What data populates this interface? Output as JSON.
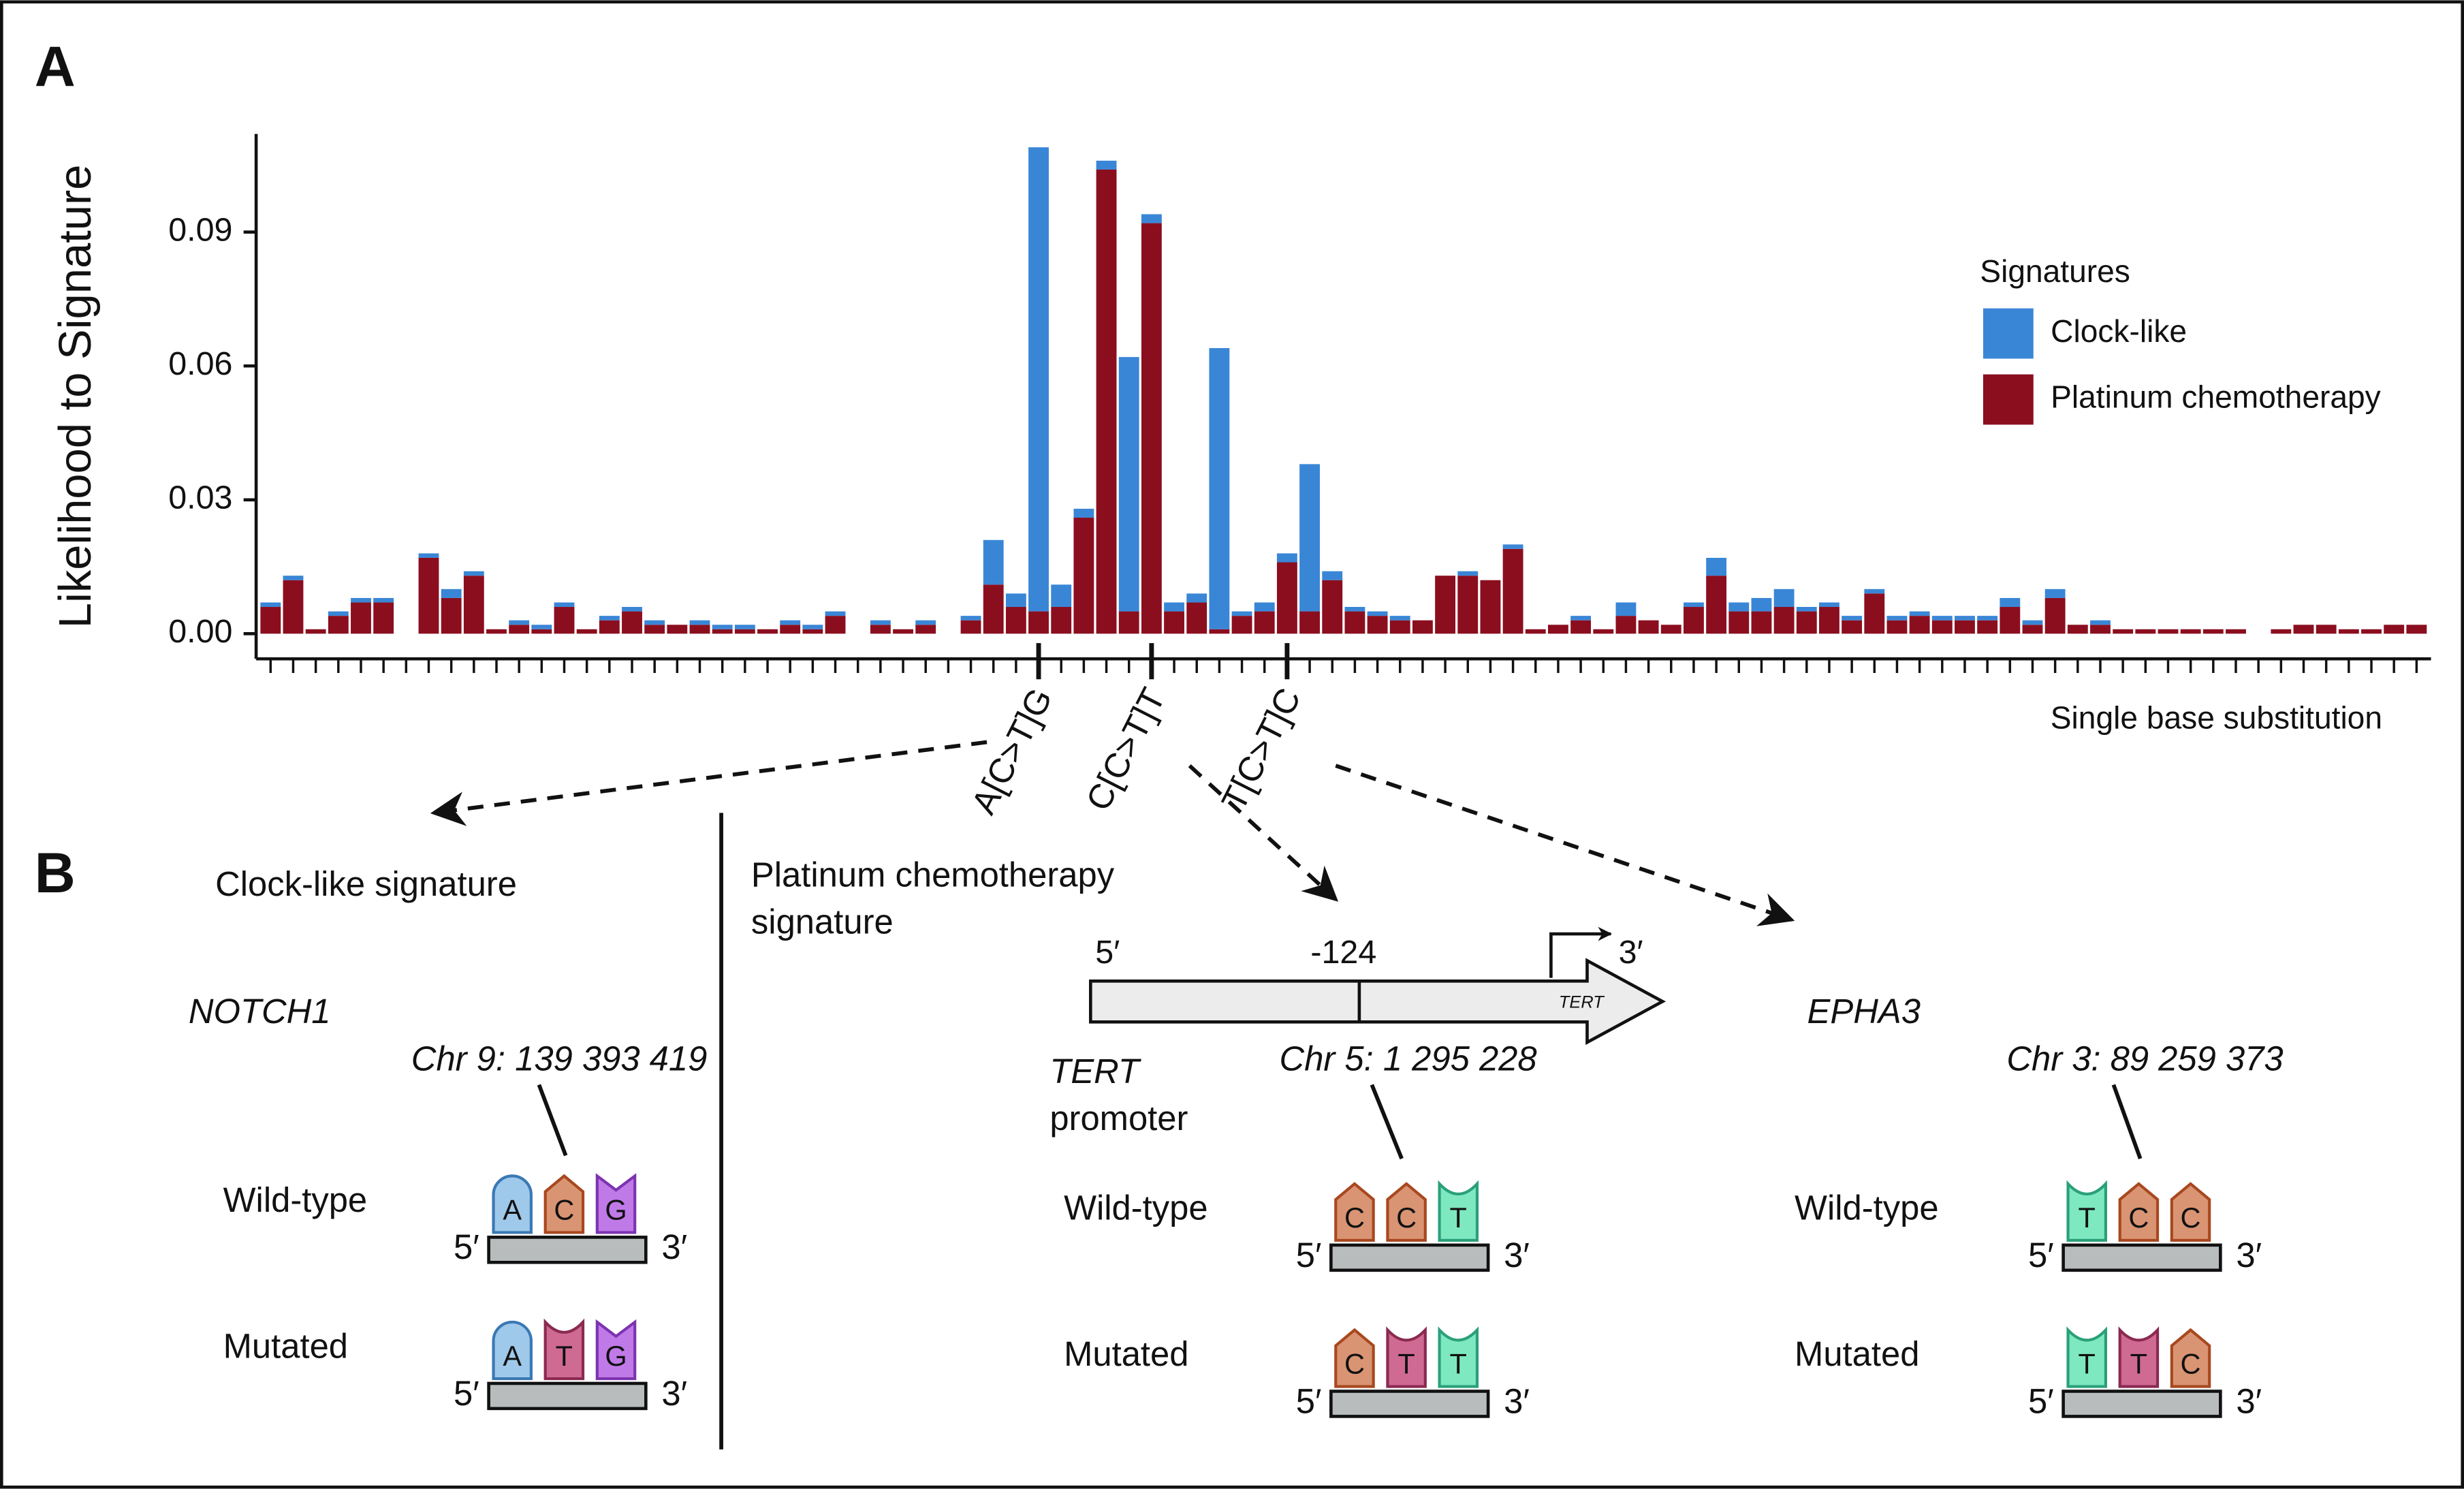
{
  "chart_data": {
    "type": "bar",
    "panel": "A",
    "ylabel": "Likelihood to Signature",
    "xlabel": "Single base substitution",
    "legend_title": "Signatures",
    "legend": "right",
    "stacked": true,
    "ylim": [
      0,
      0.112
    ],
    "yticks": [
      {
        "value": 0,
        "label": "0.00"
      },
      0.03,
      0.06,
      0.09
    ],
    "categories": [
      null,
      null,
      null,
      null,
      null,
      null,
      null,
      null,
      null,
      null,
      null,
      null,
      null,
      null,
      null,
      null,
      null,
      null,
      null,
      null,
      null,
      null,
      null,
      null,
      null,
      null,
      null,
      null,
      null,
      null,
      null,
      null,
      null,
      null,
      "A[C>T]G",
      null,
      null,
      null,
      null,
      "C[C>T]T",
      null,
      null,
      null,
      null,
      null,
      "T[C>T]C",
      null,
      null,
      null,
      null,
      null,
      null,
      null,
      null,
      null,
      null,
      null,
      null,
      null,
      null,
      null,
      null,
      null,
      null,
      null,
      null,
      null,
      null,
      null,
      null,
      null,
      null,
      null,
      null,
      null,
      null,
      null,
      null,
      null,
      null,
      null,
      null,
      null,
      null,
      null,
      null,
      null,
      null,
      null,
      null,
      null,
      null,
      null,
      null,
      null,
      null
    ],
    "series": [
      {
        "name": "Clock-like",
        "color": "#3a86d6",
        "values": [
          0.001,
          0.001,
          0,
          0.001,
          0.001,
          0.001,
          0,
          0.001,
          0.002,
          0.001,
          0,
          0.001,
          0.001,
          0.001,
          0,
          0.001,
          0.001,
          0.001,
          0,
          0.001,
          0.001,
          0.001,
          0,
          0.001,
          0.001,
          0.001,
          0,
          0.001,
          0,
          0.001,
          0,
          0.001,
          0.01,
          0.003,
          0.104,
          0.005,
          0.002,
          0.002,
          0.057,
          0.002,
          0.002,
          0.002,
          0.063,
          0.001,
          0.002,
          0.002,
          0.033,
          0.002,
          0.001,
          0.001,
          0.001,
          0,
          0,
          0.001,
          0,
          0.001,
          0,
          0,
          0.001,
          0,
          0.003,
          0,
          0,
          0.001,
          0.004,
          0.002,
          0.003,
          0.004,
          0.001,
          0.001,
          0.001,
          0.001,
          0.001,
          0.001,
          0.001,
          0.001,
          0.001,
          0.002,
          0.001,
          0.002,
          0,
          0.001,
          0,
          0,
          0,
          0,
          0,
          0,
          0,
          0,
          0,
          0,
          0,
          0,
          0,
          0
        ]
      },
      {
        "name": "Platinum chemotherapy",
        "color": "#8b0e1f",
        "values": [
          0.006,
          0.012,
          0.001,
          0.004,
          0.007,
          0.007,
          0,
          0.017,
          0.008,
          0.013,
          0.001,
          0.002,
          0.001,
          0.006,
          0.001,
          0.003,
          0.005,
          0.002,
          0.002,
          0.002,
          0.001,
          0.001,
          0.001,
          0.002,
          0.001,
          0.004,
          0,
          0.002,
          0.001,
          0.002,
          0,
          0.003,
          0.011,
          0.006,
          0.005,
          0.006,
          0.026,
          0.104,
          0.005,
          0.092,
          0.005,
          0.007,
          0.001,
          0.004,
          0.005,
          0.016,
          0.005,
          0.012,
          0.005,
          0.004,
          0.003,
          0.003,
          0.013,
          0.013,
          0.012,
          0.019,
          0.001,
          0.002,
          0.003,
          0.001,
          0.004,
          0.003,
          0.002,
          0.006,
          0.013,
          0.005,
          0.005,
          0.006,
          0.005,
          0.006,
          0.003,
          0.009,
          0.003,
          0.004,
          0.003,
          0.003,
          0.003,
          0.006,
          0.002,
          0.008,
          0.002,
          0.002,
          0.001,
          0.001,
          0.001,
          0.001,
          0.001,
          0.001,
          0,
          0.001,
          0.002,
          0.002,
          0.001,
          0.001,
          0.002,
          0.002
        ]
      }
    ]
  },
  "panel_b": {
    "label": "B",
    "strand": {
      "five": "5′",
      "three": "3′"
    },
    "tert_diagram": {
      "five": "5′",
      "position": "-124",
      "three": "3′",
      "gene": "TERT"
    },
    "columns": [
      {
        "title": [
          "Clock-like signature"
        ],
        "gene": [
          "NOTCH1"
        ],
        "position": "Chr 9: 139 393 419",
        "wild_type": {
          "label": "Wild-type",
          "bases": [
            "A",
            "C",
            "G"
          ]
        },
        "mutated": {
          "label": "Mutated",
          "bases": [
            "A",
            "T",
            "G"
          ]
        }
      },
      {
        "title": [
          "Platinum chemotherapy",
          "signature"
        ],
        "gene": [
          "TERT",
          "promoter"
        ],
        "position": "Chr 5: 1 295 228",
        "wild_type": {
          "label": "Wild-type",
          "bases": [
            "C",
            "C",
            "T"
          ]
        },
        "mutated": {
          "label": "Mutated",
          "bases": [
            "C",
            "T",
            "T"
          ]
        }
      },
      {
        "title": [],
        "gene": [
          "EPHA3"
        ],
        "position": "Chr 3: 89 259 373",
        "wild_type": {
          "label": "Wild-type",
          "bases": [
            "T",
            "C",
            "C"
          ]
        },
        "mutated": {
          "label": "Mutated",
          "bases": [
            "T",
            "T",
            "C"
          ]
        }
      }
    ]
  }
}
